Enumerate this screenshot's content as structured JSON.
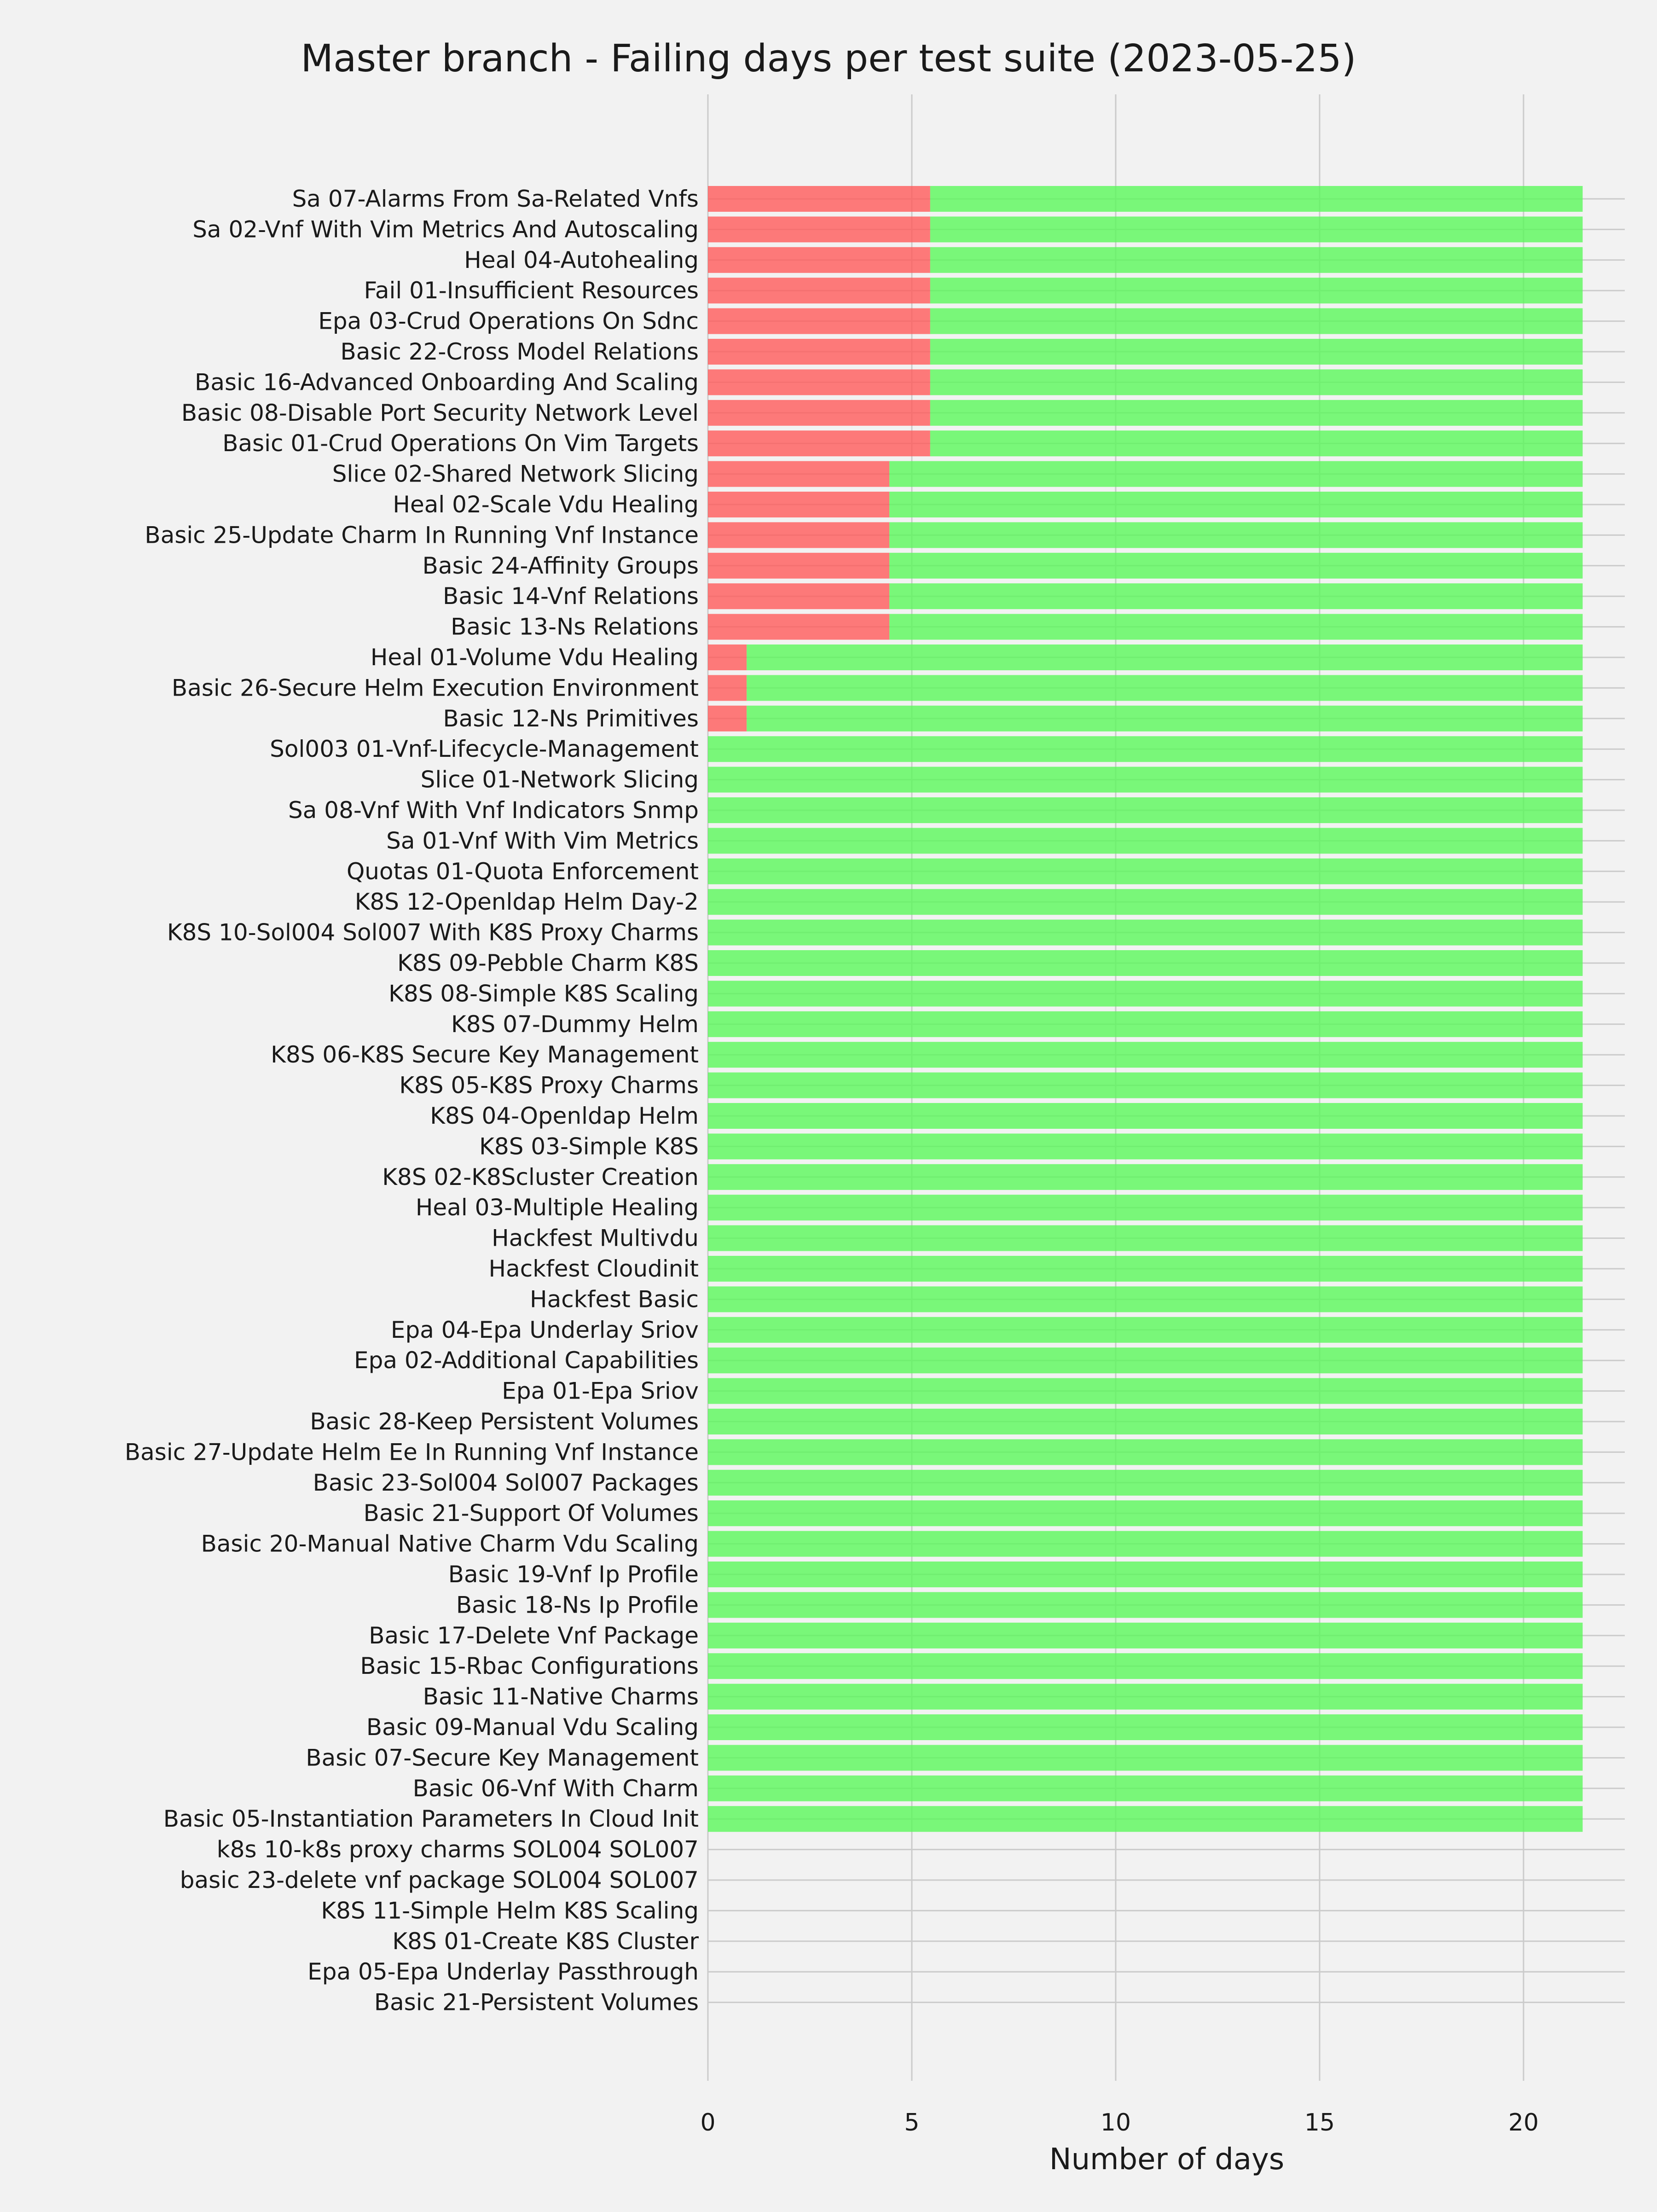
{
  "chart_data": {
    "type": "bar",
    "orientation": "horizontal",
    "stacked": true,
    "title": "Master branch - Failing days per test suite (2023-05-25)",
    "xlabel": "Number of days",
    "ylabel": "",
    "xlim": [
      0,
      22.5
    ],
    "xticks": [
      0,
      5,
      10,
      15,
      20
    ],
    "grid": true,
    "legend": "none",
    "categories": [
      "Sa 07-Alarms From Sa-Related Vnfs",
      "Sa 02-Vnf With Vim Metrics And Autoscaling",
      "Heal 04-Autohealing",
      "Fail 01-Insufficient Resources",
      "Epa 03-Crud Operations On Sdnc",
      "Basic 22-Cross Model Relations",
      "Basic 16-Advanced Onboarding And Scaling",
      "Basic 08-Disable Port Security Network Level",
      "Basic 01-Crud Operations On Vim Targets",
      "Slice 02-Shared Network Slicing",
      "Heal 02-Scale Vdu Healing",
      "Basic 25-Update Charm In Running Vnf Instance",
      "Basic 24-Affinity Groups",
      "Basic 14-Vnf Relations",
      "Basic 13-Ns Relations",
      "Heal 01-Volume Vdu Healing",
      "Basic 26-Secure Helm Execution Environment",
      "Basic 12-Ns Primitives",
      "Sol003 01-Vnf-Lifecycle-Management",
      "Slice 01-Network Slicing",
      "Sa 08-Vnf With Vnf Indicators Snmp",
      "Sa 01-Vnf With Vim Metrics",
      "Quotas 01-Quota Enforcement",
      "K8S 12-Openldap Helm Day-2",
      "K8S 10-Sol004 Sol007 With K8S Proxy Charms",
      "K8S 09-Pebble Charm K8S",
      "K8S 08-Simple K8S Scaling",
      "K8S 07-Dummy Helm",
      "K8S 06-K8S Secure Key Management",
      "K8S 05-K8S Proxy Charms",
      "K8S 04-Openldap Helm",
      "K8S 03-Simple K8S",
      "K8S 02-K8Scluster Creation",
      "Heal 03-Multiple Healing",
      "Hackfest Multivdu",
      "Hackfest Cloudinit",
      "Hackfest Basic",
      "Epa 04-Epa Underlay Sriov",
      "Epa 02-Additional Capabilities",
      "Epa 01-Epa Sriov",
      "Basic 28-Keep Persistent Volumes",
      "Basic 27-Update Helm Ee In Running Vnf Instance",
      "Basic 23-Sol004 Sol007 Packages",
      "Basic 21-Support Of Volumes",
      "Basic 20-Manual Native Charm Vdu Scaling",
      "Basic 19-Vnf Ip Profile",
      "Basic 18-Ns Ip Profile",
      "Basic 17-Delete Vnf Package",
      "Basic 15-Rbac Configurations",
      "Basic 11-Native Charms",
      "Basic 09-Manual Vdu Scaling",
      "Basic 07-Secure Key Management",
      "Basic 06-Vnf With Charm",
      "Basic 05-Instantiation Parameters In Cloud Init",
      "k8s 10-k8s proxy charms SOL004 SOL007",
      "basic 23-delete vnf package SOL004 SOL007",
      "K8S 11-Simple Helm K8S Scaling",
      "K8S 01-Create K8S Cluster",
      "Epa 05-Epa Underlay Passthrough",
      "Basic 21-Persistent Volumes"
    ],
    "series": [
      {
        "color": "#ff5a5a",
        "values": [
          5.45,
          5.45,
          5.45,
          5.45,
          5.45,
          5.45,
          5.45,
          5.45,
          5.45,
          4.45,
          4.45,
          4.45,
          4.45,
          4.45,
          4.45,
          0.95,
          0.95,
          0.95,
          0,
          0,
          0,
          0,
          0,
          0,
          0,
          0,
          0,
          0,
          0,
          0,
          0,
          0,
          0,
          0,
          0,
          0,
          0,
          0,
          0,
          0,
          0,
          0,
          0,
          0,
          0,
          0,
          0,
          0,
          0,
          0,
          0,
          0,
          0,
          0,
          0,
          0,
          0,
          0,
          0,
          0
        ]
      },
      {
        "color": "#5af75a",
        "values": [
          16,
          16,
          16,
          16,
          16,
          16,
          16,
          16,
          16,
          17,
          17,
          17,
          17,
          17,
          17,
          20.5,
          20.5,
          20.5,
          21.45,
          21.45,
          21.45,
          21.45,
          21.45,
          21.45,
          21.45,
          21.45,
          21.45,
          21.45,
          21.45,
          21.45,
          21.45,
          21.45,
          21.45,
          21.45,
          21.45,
          21.45,
          21.45,
          21.45,
          21.45,
          21.45,
          21.45,
          21.45,
          21.45,
          21.45,
          21.45,
          21.45,
          21.45,
          21.45,
          21.45,
          21.45,
          21.45,
          21.45,
          21.45,
          21.45,
          0,
          0,
          0,
          0,
          0,
          0
        ]
      }
    ]
  }
}
